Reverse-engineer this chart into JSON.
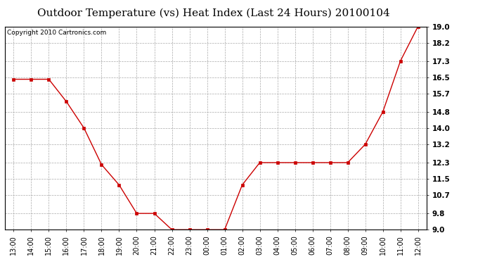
{
  "title": "Outdoor Temperature (vs) Heat Index (Last 24 Hours) 20100104",
  "copyright_text": "Copyright 2010 Cartronics.com",
  "x_tick_labels": [
    "13:00",
    "14:00",
    "15:00",
    "16:00",
    "17:00",
    "18:00",
    "19:00",
    "20:00",
    "21:00",
    "22:00",
    "23:00",
    "00:00",
    "01:00",
    "02:00",
    "03:00",
    "04:00",
    "05:00",
    "06:00",
    "07:00",
    "08:00",
    "09:00",
    "10:00",
    "11:00",
    "12:00"
  ],
  "y_values": [
    16.4,
    16.4,
    16.4,
    15.3,
    14.0,
    12.2,
    11.2,
    9.8,
    9.8,
    9.0,
    9.0,
    9.0,
    9.0,
    11.2,
    12.3,
    12.3,
    12.3,
    12.3,
    12.3,
    12.3,
    13.2,
    14.8,
    17.3,
    19.0
  ],
  "ylim": [
    9.0,
    19.0
  ],
  "y_ticks": [
    9.0,
    9.8,
    10.7,
    11.5,
    12.3,
    13.2,
    14.0,
    14.8,
    15.7,
    16.5,
    17.3,
    18.2,
    19.0
  ],
  "y_tick_labels": [
    "9.0",
    "9.8",
    "10.7",
    "11.5",
    "12.3",
    "13.2",
    "14.0",
    "14.8",
    "15.7",
    "16.5",
    "17.3",
    "18.2",
    "19.0"
  ],
  "line_color": "#cc0000",
  "marker": "s",
  "marker_size": 2.5,
  "background_color": "#ffffff",
  "grid_color": "#aaaaaa",
  "title_fontsize": 11,
  "tick_fontsize": 7,
  "copyright_fontsize": 6.5
}
